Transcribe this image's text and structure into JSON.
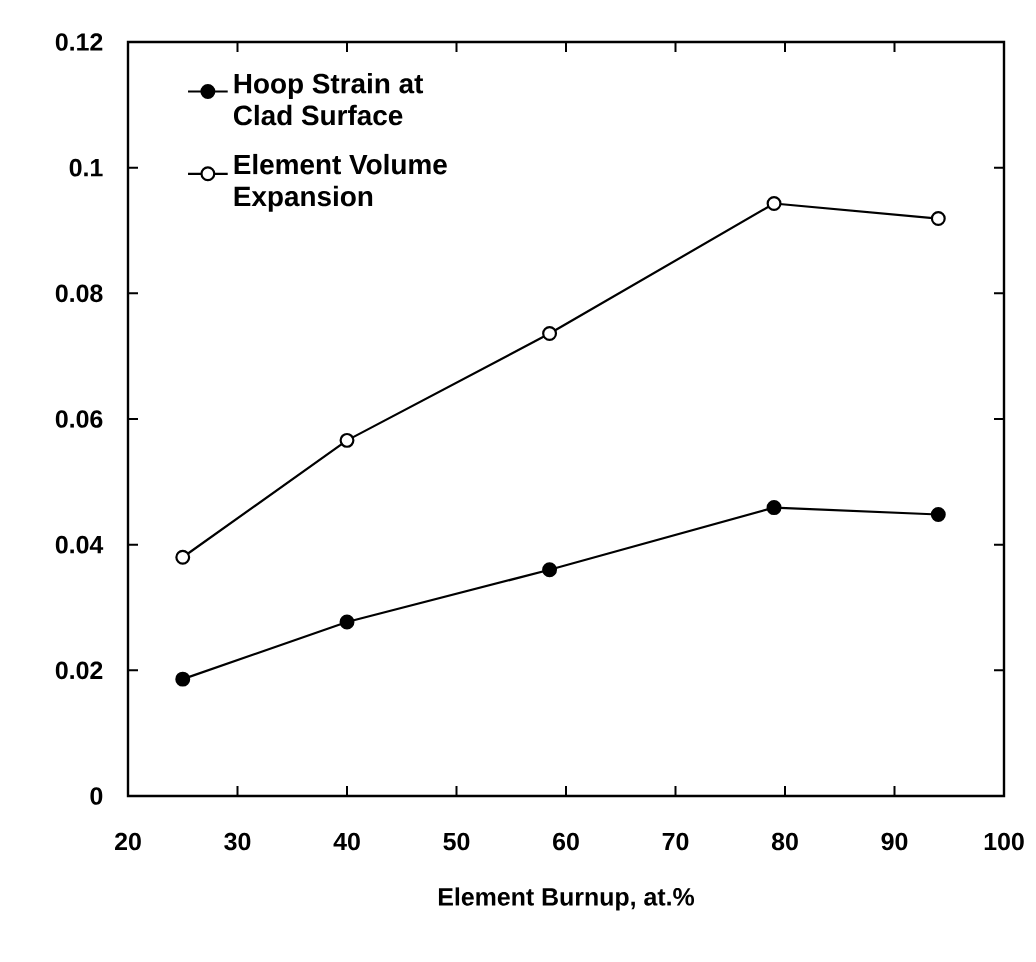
{
  "chart_data": {
    "type": "line",
    "xlabel": "Element Burnup, at.%",
    "x": [
      25,
      40,
      58.5,
      79,
      94
    ],
    "series": [
      {
        "name": "Hoop Strain at Clad Surface",
        "color": "#000000",
        "values": [
          0.0186,
          0.0277,
          0.036,
          0.0459,
          0.0448
        ]
      },
      {
        "name": "Element Volume Expansion",
        "color": "#000000",
        "values": [
          0.038,
          0.0566,
          0.0736,
          0.0943,
          0.0919
        ]
      }
    ],
    "xlim": [
      20,
      100
    ],
    "xticks": [
      20,
      30,
      40,
      50,
      60,
      70,
      80,
      90,
      100
    ],
    "ylim": [
      0,
      0.12
    ],
    "yticks": [
      0,
      0.02,
      0.04,
      0.06,
      0.08,
      0.1,
      0.12
    ],
    "grid": false,
    "legend": "top left",
    "marker": "circle",
    "line_style": "solid"
  }
}
